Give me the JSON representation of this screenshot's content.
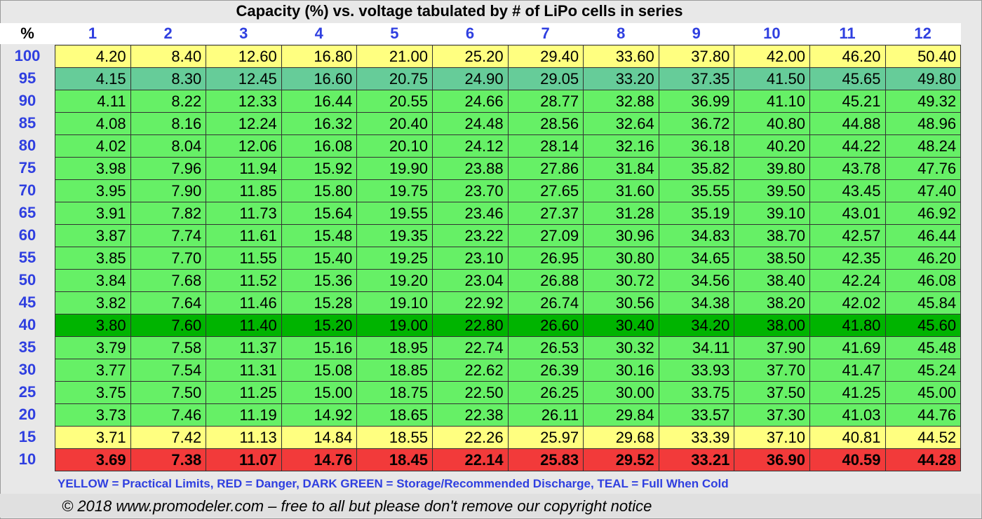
{
  "title": "Capacity (%) vs. voltage tabulated by # of LiPo cells in series",
  "corner_label": "%",
  "chart_data": {
    "type": "table",
    "columns": [
      "1",
      "2",
      "3",
      "4",
      "5",
      "6",
      "7",
      "8",
      "9",
      "10",
      "11",
      "12"
    ],
    "rows": [
      {
        "label": "100",
        "zone": "yellow",
        "values": [
          "4.20",
          "8.40",
          "12.60",
          "16.80",
          "21.00",
          "25.20",
          "29.40",
          "33.60",
          "37.80",
          "42.00",
          "46.20",
          "50.40"
        ]
      },
      {
        "label": "95",
        "zone": "teal",
        "values": [
          "4.15",
          "8.30",
          "12.45",
          "16.60",
          "20.75",
          "24.90",
          "29.05",
          "33.20",
          "37.35",
          "41.50",
          "45.65",
          "49.80"
        ]
      },
      {
        "label": "90",
        "zone": "green",
        "values": [
          "4.11",
          "8.22",
          "12.33",
          "16.44",
          "20.55",
          "24.66",
          "28.77",
          "32.88",
          "36.99",
          "41.10",
          "45.21",
          "49.32"
        ]
      },
      {
        "label": "85",
        "zone": "green",
        "values": [
          "4.08",
          "8.16",
          "12.24",
          "16.32",
          "20.40",
          "24.48",
          "28.56",
          "32.64",
          "36.72",
          "40.80",
          "44.88",
          "48.96"
        ]
      },
      {
        "label": "80",
        "zone": "green",
        "values": [
          "4.02",
          "8.04",
          "12.06",
          "16.08",
          "20.10",
          "24.12",
          "28.14",
          "32.16",
          "36.18",
          "40.20",
          "44.22",
          "48.24"
        ]
      },
      {
        "label": "75",
        "zone": "green",
        "values": [
          "3.98",
          "7.96",
          "11.94",
          "15.92",
          "19.90",
          "23.88",
          "27.86",
          "31.84",
          "35.82",
          "39.80",
          "43.78",
          "47.76"
        ]
      },
      {
        "label": "70",
        "zone": "green",
        "values": [
          "3.95",
          "7.90",
          "11.85",
          "15.80",
          "19.75",
          "23.70",
          "27.65",
          "31.60",
          "35.55",
          "39.50",
          "43.45",
          "47.40"
        ]
      },
      {
        "label": "65",
        "zone": "green",
        "values": [
          "3.91",
          "7.82",
          "11.73",
          "15.64",
          "19.55",
          "23.46",
          "27.37",
          "31.28",
          "35.19",
          "39.10",
          "43.01",
          "46.92"
        ]
      },
      {
        "label": "60",
        "zone": "green",
        "values": [
          "3.87",
          "7.74",
          "11.61",
          "15.48",
          "19.35",
          "23.22",
          "27.09",
          "30.96",
          "34.83",
          "38.70",
          "42.57",
          "46.44"
        ]
      },
      {
        "label": "55",
        "zone": "green",
        "values": [
          "3.85",
          "7.70",
          "11.55",
          "15.40",
          "19.25",
          "23.10",
          "26.95",
          "30.80",
          "34.65",
          "38.50",
          "42.35",
          "46.20"
        ]
      },
      {
        "label": "50",
        "zone": "green",
        "values": [
          "3.84",
          "7.68",
          "11.52",
          "15.36",
          "19.20",
          "23.04",
          "26.88",
          "30.72",
          "34.56",
          "38.40",
          "42.24",
          "46.08"
        ]
      },
      {
        "label": "45",
        "zone": "green",
        "values": [
          "3.82",
          "7.64",
          "11.46",
          "15.28",
          "19.10",
          "22.92",
          "26.74",
          "30.56",
          "34.38",
          "38.20",
          "42.02",
          "45.84"
        ]
      },
      {
        "label": "40",
        "zone": "darkgreen",
        "values": [
          "3.80",
          "7.60",
          "11.40",
          "15.20",
          "19.00",
          "22.80",
          "26.60",
          "30.40",
          "34.20",
          "38.00",
          "41.80",
          "45.60"
        ]
      },
      {
        "label": "35",
        "zone": "green",
        "values": [
          "3.79",
          "7.58",
          "11.37",
          "15.16",
          "18.95",
          "22.74",
          "26.53",
          "30.32",
          "34.11",
          "37.90",
          "41.69",
          "45.48"
        ]
      },
      {
        "label": "30",
        "zone": "green",
        "values": [
          "3.77",
          "7.54",
          "11.31",
          "15.08",
          "18.85",
          "22.62",
          "26.39",
          "30.16",
          "33.93",
          "37.70",
          "41.47",
          "45.24"
        ]
      },
      {
        "label": "25",
        "zone": "green",
        "values": [
          "3.75",
          "7.50",
          "11.25",
          "15.00",
          "18.75",
          "22.50",
          "26.25",
          "30.00",
          "33.75",
          "37.50",
          "41.25",
          "45.00"
        ]
      },
      {
        "label": "20",
        "zone": "green",
        "values": [
          "3.73",
          "7.46",
          "11.19",
          "14.92",
          "18.65",
          "22.38",
          "26.11",
          "29.84",
          "33.57",
          "37.30",
          "41.03",
          "44.76"
        ]
      },
      {
        "label": "15",
        "zone": "yellow",
        "values": [
          "3.71",
          "7.42",
          "11.13",
          "14.84",
          "18.55",
          "22.26",
          "25.97",
          "29.68",
          "33.39",
          "37.10",
          "40.81",
          "44.52"
        ]
      },
      {
        "label": "10",
        "zone": "red",
        "values": [
          "3.69",
          "7.38",
          "11.07",
          "14.76",
          "18.45",
          "22.14",
          "25.83",
          "29.52",
          "33.21",
          "36.90",
          "40.59",
          "44.28"
        ]
      }
    ]
  },
  "colors": {
    "yellow": "#ffff80",
    "teal": "#66cc99",
    "green": "#66f066",
    "darkgreen": "#00b400",
    "red": "#f23a3a",
    "header_blue": "#2f3fe0"
  },
  "legend": "YELLOW = Practical Limits, RED = Danger, DARK GREEN = Storage/Recommended Discharge, TEAL = Full When Cold",
  "copyright": "© 2018 www.promodeler.com – free to all but please don't remove our copyright notice"
}
